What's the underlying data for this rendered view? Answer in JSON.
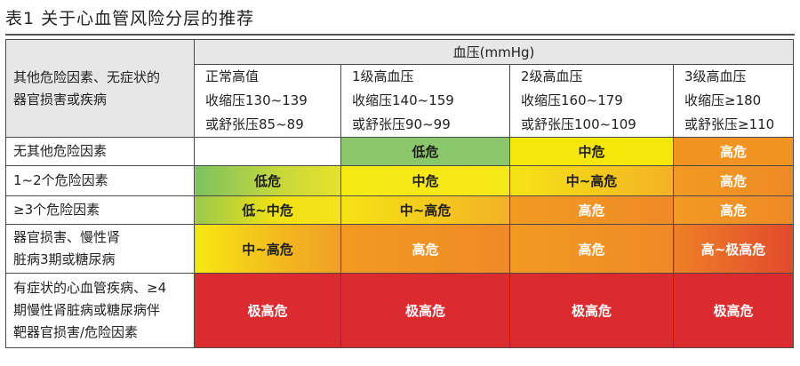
{
  "title": "表1 关于心血管风险分层的推荐",
  "header": {
    "row_head": [
      "其他危险因素、无症状的",
      "器官损害或疾病"
    ],
    "bp_label": "血压(mmHg)",
    "columns": [
      {
        "l1": "正常高值",
        "l2": "收缩压130~139",
        "l3": "或舒张压85~89"
      },
      {
        "l1": "1级高血压",
        "l2": "收缩压140~159",
        "l3": "或舒张压90~99"
      },
      {
        "l1": "2级高血压",
        "l2": "收缩压160~179",
        "l3": "或舒张压100~109"
      },
      {
        "l1": "3级高血压",
        "l2": "收缩压≥180",
        "l3": "或舒张压≥110"
      }
    ]
  },
  "rows": [
    {
      "label": [
        "无其他危险因素"
      ],
      "cells": [
        "",
        "低危",
        "中危",
        "高危"
      ]
    },
    {
      "label": [
        "1~2个危险因素"
      ],
      "cells": [
        "低危",
        "中危",
        "中~高危",
        "高危"
      ]
    },
    {
      "label": [
        "≥3个危险因素"
      ],
      "cells": [
        "低~中危",
        "中~高危",
        "高危",
        "高危"
      ]
    },
    {
      "label": [
        "器官损害、慢性肾",
        "脏病3期或糖尿病"
      ],
      "cells": [
        "中~高危",
        "高危",
        "高危",
        "高~极高危"
      ]
    },
    {
      "label": [
        "有症状的心血管疾病、≥4",
        "期慢性肾脏病或糖尿病伴",
        "靶器官损害/危险因素"
      ],
      "cells": [
        "极高危",
        "极高危",
        "极高危",
        "极高危"
      ]
    }
  ],
  "colors": {
    "green": "#8ac76a",
    "yellow": "#f5e70a",
    "orange": "#f39422",
    "red": "#db2b2f",
    "header_gray": "#e7e7e7"
  }
}
